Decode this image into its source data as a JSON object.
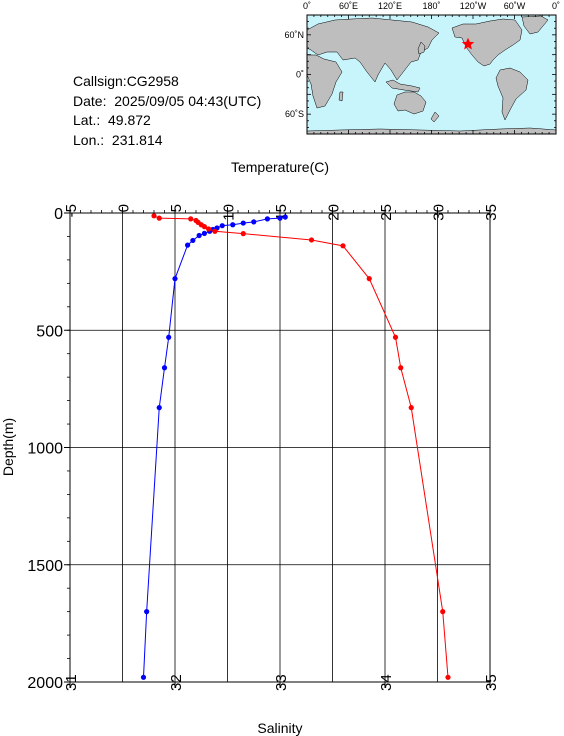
{
  "station": {
    "callsign": "Callsign:CG2958",
    "date": "Date:  2025/09/05 04:43(UTC)",
    "lat": "Lat.:  49.872",
    "lon": "Lon.:  231.814"
  },
  "map": {
    "top_labels": [
      "0˚",
      "60˚E",
      "120˚E",
      "180˚",
      "120˚W",
      "60˚W",
      "0˚"
    ],
    "left_labels": [
      "60˚N",
      "0˚",
      "60˚S"
    ],
    "ocean_color": "#c8f4fc",
    "land_color": "#bebebe",
    "marker_color": "#ff0000",
    "marker_icon": "star-icon"
  },
  "chart_data": {
    "type": "line",
    "ylabel": "Depth(m)",
    "yticks": [
      "0",
      "500",
      "1000",
      "1500",
      "2000"
    ],
    "ylim": [
      0,
      2000
    ],
    "y_reversed": true,
    "grid": true,
    "top_axis": {
      "label": "Temperature(C)",
      "ticks": [
        "-5",
        "0",
        "5",
        "10",
        "15",
        "20",
        "25",
        "30",
        "35"
      ],
      "range": [
        -5,
        35
      ]
    },
    "bottom_axis": {
      "label": "Salinity",
      "ticks": [
        "31",
        "32",
        "33",
        "34",
        "35"
      ],
      "range": [
        31,
        35
      ]
    },
    "series": [
      {
        "color": "#0000ff",
        "axis": "top",
        "points": [
          [
            15.5,
            17
          ],
          [
            15.0,
            22
          ],
          [
            13.8,
            25
          ],
          [
            12.5,
            38
          ],
          [
            11.5,
            43
          ],
          [
            10.5,
            50
          ],
          [
            9.5,
            54
          ],
          [
            9.0,
            64
          ],
          [
            8.6,
            70
          ],
          [
            8.3,
            78
          ],
          [
            7.8,
            87
          ],
          [
            7.3,
            96
          ],
          [
            6.7,
            117
          ],
          [
            6.2,
            137
          ],
          [
            5.0,
            280
          ],
          [
            4.4,
            530
          ],
          [
            4.0,
            660
          ],
          [
            3.5,
            830
          ],
          [
            2.3,
            1700
          ],
          [
            2.0,
            1980
          ]
        ]
      },
      {
        "color": "#ff0000",
        "axis": "bottom",
        "points": [
          [
            31.8,
            12
          ],
          [
            31.85,
            22
          ],
          [
            32.15,
            25
          ],
          [
            32.2,
            32
          ],
          [
            32.22,
            40
          ],
          [
            32.25,
            50
          ],
          [
            32.28,
            58
          ],
          [
            32.32,
            68
          ],
          [
            32.38,
            78
          ],
          [
            32.65,
            88
          ],
          [
            33.3,
            115
          ],
          [
            33.6,
            140
          ],
          [
            33.85,
            280
          ],
          [
            34.1,
            530
          ],
          [
            34.15,
            660
          ],
          [
            34.25,
            830
          ],
          [
            34.55,
            1700
          ],
          [
            34.6,
            1980
          ]
        ]
      }
    ]
  }
}
